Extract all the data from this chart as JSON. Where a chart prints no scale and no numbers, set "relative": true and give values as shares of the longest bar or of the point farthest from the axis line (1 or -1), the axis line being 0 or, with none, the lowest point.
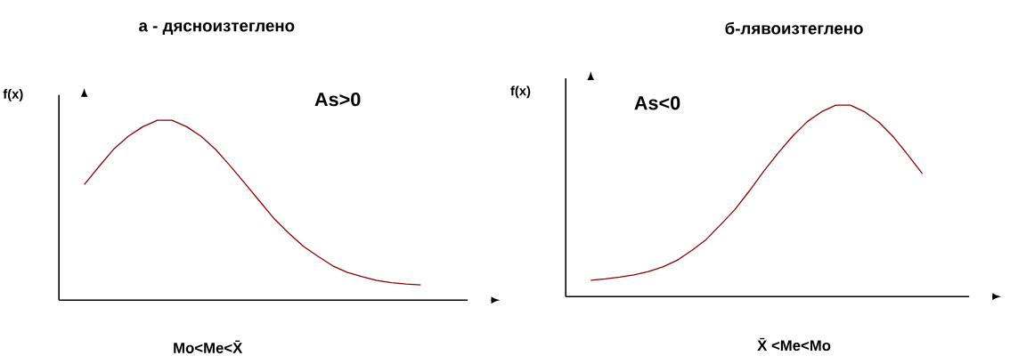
{
  "chart_data": [
    {
      "type": "line",
      "title": "а - дясноизтеглено",
      "xlabel": "Mo<Me<X̄",
      "ylabel": "f(x)",
      "annotations": [
        "As>0"
      ],
      "relative": true,
      "categories": [
        null,
        null,
        null,
        null,
        null,
        null,
        null,
        null,
        null,
        null,
        null,
        null,
        null,
        null,
        null,
        null,
        null,
        null,
        null,
        null,
        null,
        null,
        null,
        null
      ],
      "series": [
        {
          "color": "#8b0000",
          "values": [
            0.642,
            0.742,
            0.838,
            0.91,
            0.964,
            1,
            1,
            0.964,
            0.91,
            0.836,
            0.744,
            0.647,
            0.549,
            0.451,
            0.371,
            0.298,
            0.242,
            0.19,
            0.154,
            0.13,
            0.109,
            0.097,
            0.09,
            0.085
          ]
        }
      ]
    },
    {
      "type": "line",
      "title": "б-лявоизтеглено",
      "xlabel": "X̄ <Me<Mo",
      "ylabel": "f(x)",
      "annotations": [
        "As<0"
      ],
      "relative": true,
      "categories": [
        null,
        null,
        null,
        null,
        null,
        null,
        null,
        null,
        null,
        null,
        null,
        null,
        null,
        null,
        null,
        null,
        null,
        null,
        null,
        null,
        null,
        null,
        null,
        null
      ],
      "series": [
        {
          "color": "#8b0000",
          "values": [
            0.086,
            0.093,
            0.102,
            0.113,
            0.131,
            0.155,
            0.19,
            0.241,
            0.298,
            0.375,
            0.455,
            0.552,
            0.655,
            0.75,
            0.838,
            0.913,
            0.965,
            1,
            1,
            0.965,
            0.91,
            0.833,
            0.74,
            0.642
          ]
        }
      ]
    }
  ]
}
